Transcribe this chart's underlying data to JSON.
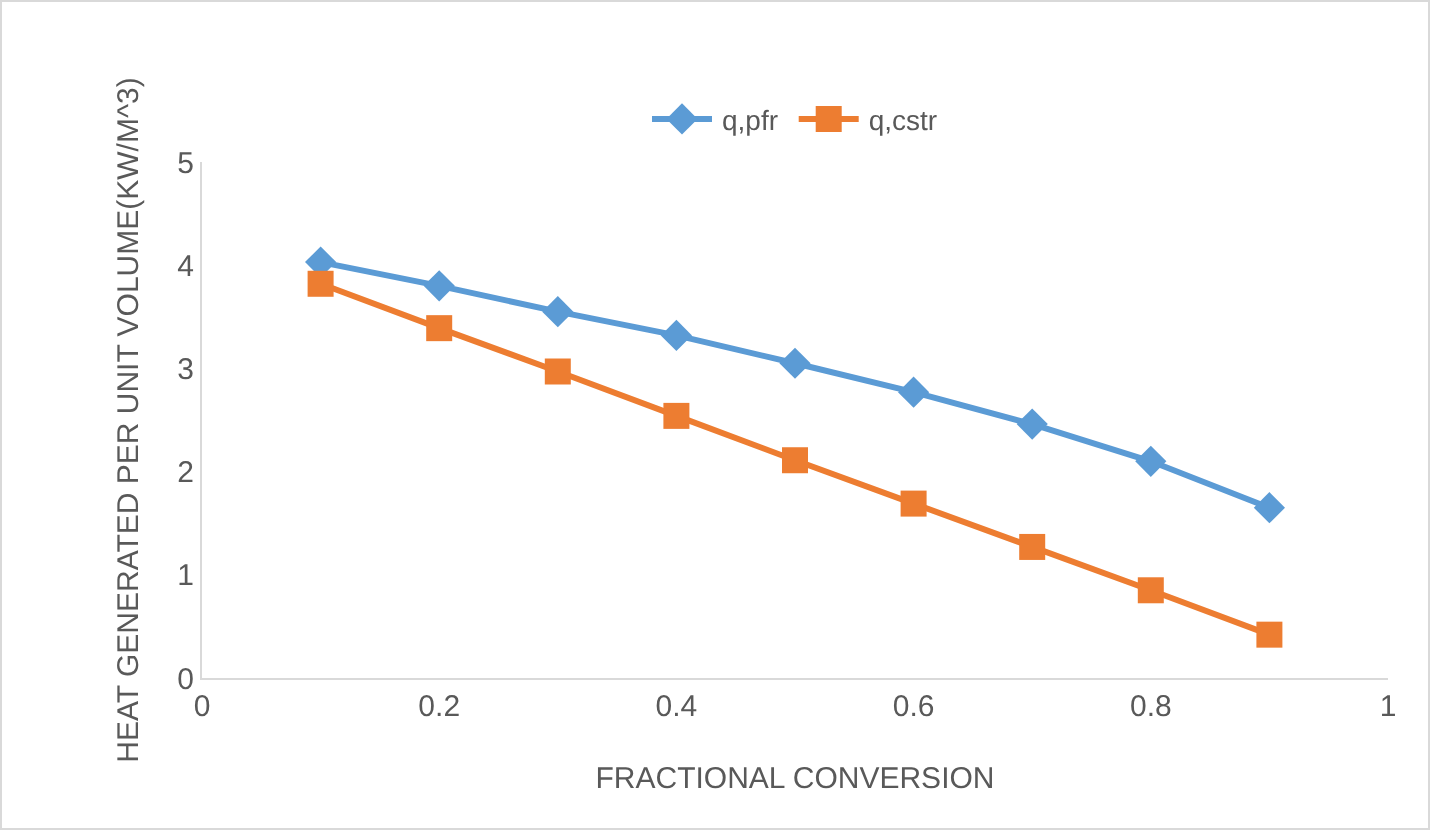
{
  "chart_data": {
    "type": "line",
    "xlabel": "FRACTIONAL CONVERSION",
    "ylabel": "HEAT GENERATED PER UNIT VOLUME(KW/M^3)",
    "x": [
      0.1,
      0.2,
      0.3,
      0.4,
      0.5,
      0.6,
      0.7,
      0.8,
      0.9
    ],
    "series": [
      {
        "name": "q,pfr",
        "color": "#5b9bd5",
        "marker": "diamond",
        "values": [
          4.03,
          3.8,
          3.55,
          3.32,
          3.05,
          2.77,
          2.46,
          2.1,
          1.65
        ]
      },
      {
        "name": "q,cstr",
        "color": "#ed7d31",
        "marker": "square",
        "values": [
          3.82,
          3.39,
          2.97,
          2.54,
          2.11,
          1.69,
          1.27,
          0.85,
          0.42
        ]
      }
    ],
    "xlim": [
      0,
      1
    ],
    "xticks": [
      0,
      0.2,
      0.4,
      0.6,
      0.8,
      1
    ],
    "ylim": [
      0,
      5
    ],
    "yticks": [
      0,
      1,
      2,
      3,
      4,
      5
    ],
    "grid": false,
    "legend": "top",
    "line_style": "solid"
  }
}
